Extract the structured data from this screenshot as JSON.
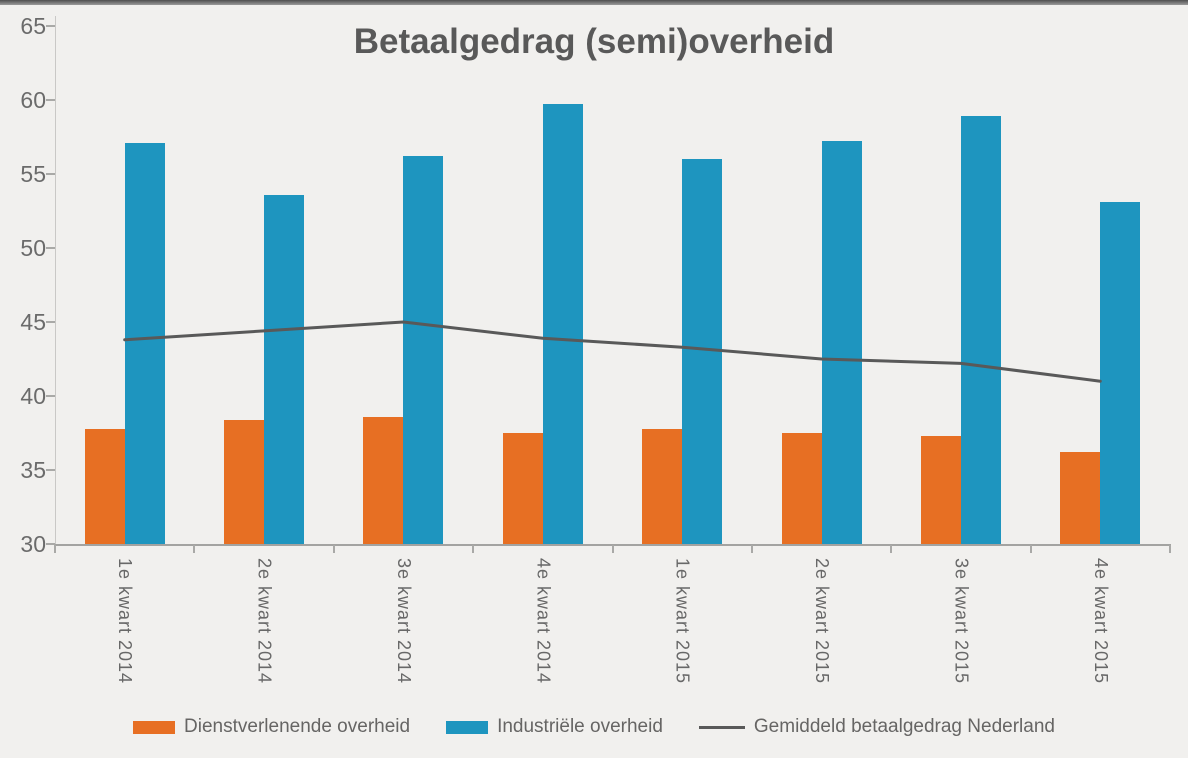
{
  "chart_data": {
    "type": "bar",
    "subtype": "grouped-bars-with-line-overlay",
    "title": "Betaalgedrag (semi)overheid",
    "categories": [
      "1e kwart 2014",
      "2e kwart 2014",
      "3e kwart 2014",
      "4e kwart 2014",
      "1e kwart 2015",
      "2e kwart 2015",
      "3e kwart 2015",
      "4e kwart 2015"
    ],
    "series": [
      {
        "name": "Dienstverlenende overheid",
        "kind": "bar",
        "color": "#e76f23",
        "values": [
          37.8,
          38.4,
          38.6,
          37.5,
          37.8,
          37.5,
          37.3,
          36.2
        ]
      },
      {
        "name": "Industriële overheid",
        "kind": "bar",
        "color": "#1e95bf",
        "values": [
          57.1,
          53.6,
          56.2,
          59.7,
          56.0,
          57.2,
          58.9,
          53.1
        ]
      },
      {
        "name": "Gemiddeld betaalgedrag Nederland",
        "kind": "line",
        "color": "#595959",
        "values": [
          43.8,
          44.4,
          45.0,
          43.9,
          43.3,
          42.5,
          42.2,
          41.0
        ]
      }
    ],
    "ylim": [
      30,
      65
    ],
    "yticks": [
      30,
      35,
      40,
      45,
      50,
      55,
      60,
      65
    ],
    "grid": false,
    "legend_position": "bottom",
    "colors": {
      "background": "#f1f0ee",
      "title_text": "#595959",
      "axis_text": "#6b6b6b",
      "axis_line": "#c9c8c6"
    }
  }
}
